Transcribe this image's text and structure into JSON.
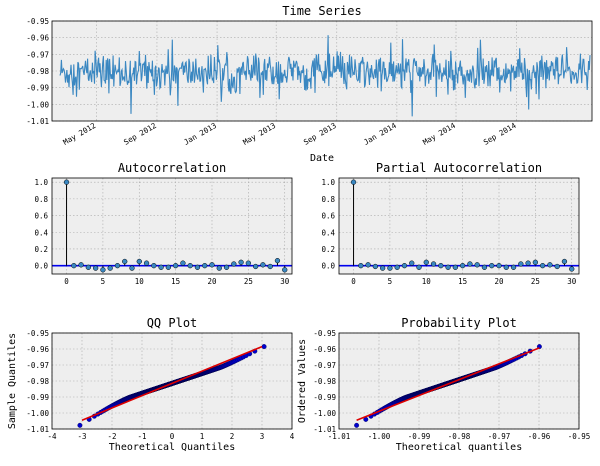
{
  "charts": [
    {
      "id": "ts",
      "type": "line",
      "title": "Time Series",
      "xlabel": "Date",
      "ylabel": "",
      "ylim": [
        -1.01,
        -0.95
      ],
      "yticks": [
        "-0.95",
        "-0.96",
        "-0.97",
        "-0.98",
        "-0.99",
        "-1.00",
        "-1.01"
      ],
      "xticks": [
        "May 2012",
        "Sep 2012",
        "Jan 2013",
        "May 2013",
        "Sep 2013",
        "Jan 2014",
        "May 2014",
        "Sep 2014"
      ],
      "x_range": [
        "2012-02-01",
        "2015-02-01"
      ],
      "mean": -0.981,
      "color": "#3a87c1",
      "background": "#eeeeee",
      "grid": true
    },
    {
      "id": "acf",
      "type": "stem",
      "title": "Autocorrelation",
      "xlim": [
        -2,
        31
      ],
      "ylim": [
        -0.1,
        1.05
      ],
      "xticks": [
        "0",
        "5",
        "10",
        "15",
        "20",
        "25",
        "30"
      ],
      "yticks": [
        "1.0",
        "0.8",
        "0.6",
        "0.4",
        "0.2",
        "0.0"
      ],
      "lags": [
        0,
        1,
        2,
        3,
        4,
        5,
        6,
        7,
        8,
        9,
        10,
        11,
        12,
        13,
        14,
        15,
        16,
        17,
        18,
        19,
        20,
        21,
        22,
        23,
        24,
        25,
        26,
        27,
        28,
        29,
        30
      ],
      "values": [
        1.0,
        0.0,
        0.01,
        -0.02,
        -0.03,
        -0.05,
        -0.03,
        0.0,
        0.05,
        -0.03,
        0.05,
        0.03,
        0.0,
        -0.02,
        -0.02,
        0.0,
        0.03,
        0.0,
        -0.02,
        0.0,
        0.01,
        -0.03,
        -0.02,
        0.02,
        0.04,
        0.03,
        -0.01,
        0.01,
        -0.01,
        0.06,
        -0.05
      ],
      "color": "#3a87c1",
      "background": "#eeeeee",
      "grid": true
    },
    {
      "id": "pacf",
      "type": "stem",
      "title": "Partial Autocorrelation",
      "xlim": [
        -2,
        31
      ],
      "ylim": [
        -0.1,
        1.05
      ],
      "xticks": [
        "0",
        "5",
        "10",
        "15",
        "20",
        "25",
        "30"
      ],
      "yticks": [
        "1.0",
        "0.8",
        "0.6",
        "0.4",
        "0.2",
        "0.0"
      ],
      "lags": [
        0,
        1,
        2,
        3,
        4,
        5,
        6,
        7,
        8,
        9,
        10,
        11,
        12,
        13,
        14,
        15,
        16,
        17,
        18,
        19,
        20,
        21,
        22,
        23,
        24,
        25,
        26,
        27,
        28,
        29,
        30
      ],
      "values": [
        1.0,
        0.0,
        0.01,
        -0.01,
        -0.03,
        -0.03,
        -0.02,
        0.0,
        0.03,
        -0.02,
        0.04,
        0.02,
        0.0,
        -0.02,
        -0.02,
        0.0,
        0.02,
        0.01,
        -0.02,
        0.0,
        0.0,
        -0.02,
        -0.02,
        0.02,
        0.03,
        0.04,
        0.0,
        0.01,
        -0.01,
        0.05,
        -0.04
      ],
      "color": "#3a87c1",
      "background": "#eeeeee",
      "grid": true
    },
    {
      "id": "qq",
      "type": "scatter",
      "title": "QQ Plot",
      "xlabel": "Theoretical Quantiles",
      "ylabel": "Sample Quantiles",
      "xlim": [
        -4,
        4
      ],
      "ylim": [
        -1.01,
        -0.95
      ],
      "xticks": [
        "-4",
        "-3",
        "-2",
        "-1",
        "0",
        "1",
        "2",
        "3",
        "4"
      ],
      "yticks": [
        "-0.95",
        "-0.96",
        "-0.97",
        "-0.98",
        "-0.99",
        "-1.00",
        "-1.01"
      ],
      "x_min": -3.07,
      "x_max": 3.07,
      "fit_line": {
        "x": [
          -3.0,
          3.0
        ],
        "y": [
          -1.0045,
          -0.9585
        ]
      },
      "point_color": "#0000cc",
      "line_color": "#dd0000",
      "background": "#eeeeee",
      "grid": true
    },
    {
      "id": "prob",
      "type": "scatter",
      "title": "Probability Plot",
      "xlabel": "Theoretical quantiles",
      "ylabel": "Ordered Values",
      "xlim": [
        -1.01,
        -0.95
      ],
      "ylim": [
        -1.01,
        -0.95
      ],
      "xticks": [
        "-1.01",
        "-1.00",
        "-0.99",
        "-0.98",
        "-0.97",
        "-0.96",
        "-0.95"
      ],
      "yticks": [
        "-0.95",
        "-0.96",
        "-0.97",
        "-0.98",
        "-0.99",
        "-1.00",
        "-1.01"
      ],
      "x_min": -1.0056,
      "x_max": -0.9599,
      "fit_line": {
        "x": [
          -1.0056,
          -0.9599
        ],
        "y": [
          -1.0045,
          -0.9593
        ]
      },
      "point_color": "#0000cc",
      "line_color": "#dd0000",
      "background": "#eeeeee",
      "grid": true
    }
  ]
}
